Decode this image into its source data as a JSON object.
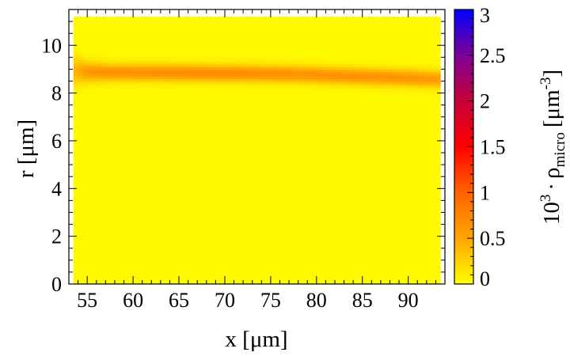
{
  "chart_data": {
    "type": "heatmap",
    "xlabel": "x [μm]",
    "ylabel": "r [μm]",
    "xlim": [
      53,
      94
    ],
    "ylim": [
      0,
      11.5
    ],
    "x_ticks": [
      55,
      60,
      65,
      70,
      75,
      80,
      85,
      90
    ],
    "y_ticks": [
      0,
      2,
      4,
      6,
      8,
      10
    ],
    "data_extent": {
      "x": [
        53.5,
        93.5
      ],
      "r": [
        0,
        11.2
      ]
    },
    "colorbar": {
      "label_base": "10",
      "label_exponent": "3",
      "label_dot": "·",
      "label_symbol": "ρ",
      "label_subscript": "micro",
      "label_unit_open": "[μm",
      "label_unit_exponent": "-3",
      "label_unit_close": "]",
      "range": [
        0,
        3
      ],
      "ticks": [
        0,
        0.5,
        1,
        1.5,
        2,
        2.5,
        3
      ],
      "tick_labels": [
        "0",
        "0.5",
        "1",
        "1.5",
        "2",
        "2.5",
        "3"
      ],
      "colormap": [
        {
          "value": 0.0,
          "color": "#ffff00"
        },
        {
          "value": 0.5,
          "color": "#ffa500"
        },
        {
          "value": 1.0,
          "color": "#ff6400"
        },
        {
          "value": 1.5,
          "color": "#ff0000"
        },
        {
          "value": 2.0,
          "color": "#c8003c"
        },
        {
          "value": 2.5,
          "color": "#7d0096"
        },
        {
          "value": 3.0,
          "color": "#0000ff"
        }
      ]
    },
    "background_value": 0.03,
    "density_band": {
      "description": "thin elevated-density ring near r ≈ 8.8 μm along x",
      "samples_x": [
        54,
        55,
        58,
        62,
        66,
        70,
        74,
        78,
        82,
        86,
        90,
        93
      ],
      "center_r": [
        8.95,
        8.9,
        8.88,
        8.87,
        8.86,
        8.85,
        8.83,
        8.8,
        8.75,
        8.7,
        8.65,
        8.6
      ],
      "peak_value": [
        0.4,
        0.6,
        0.62,
        0.64,
        0.66,
        0.66,
        0.64,
        0.62,
        0.62,
        0.62,
        0.6,
        0.55
      ],
      "width_r": [
        0.55,
        0.4,
        0.35,
        0.35,
        0.35,
        0.35,
        0.35,
        0.35,
        0.35,
        0.35,
        0.35,
        0.35
      ]
    }
  }
}
